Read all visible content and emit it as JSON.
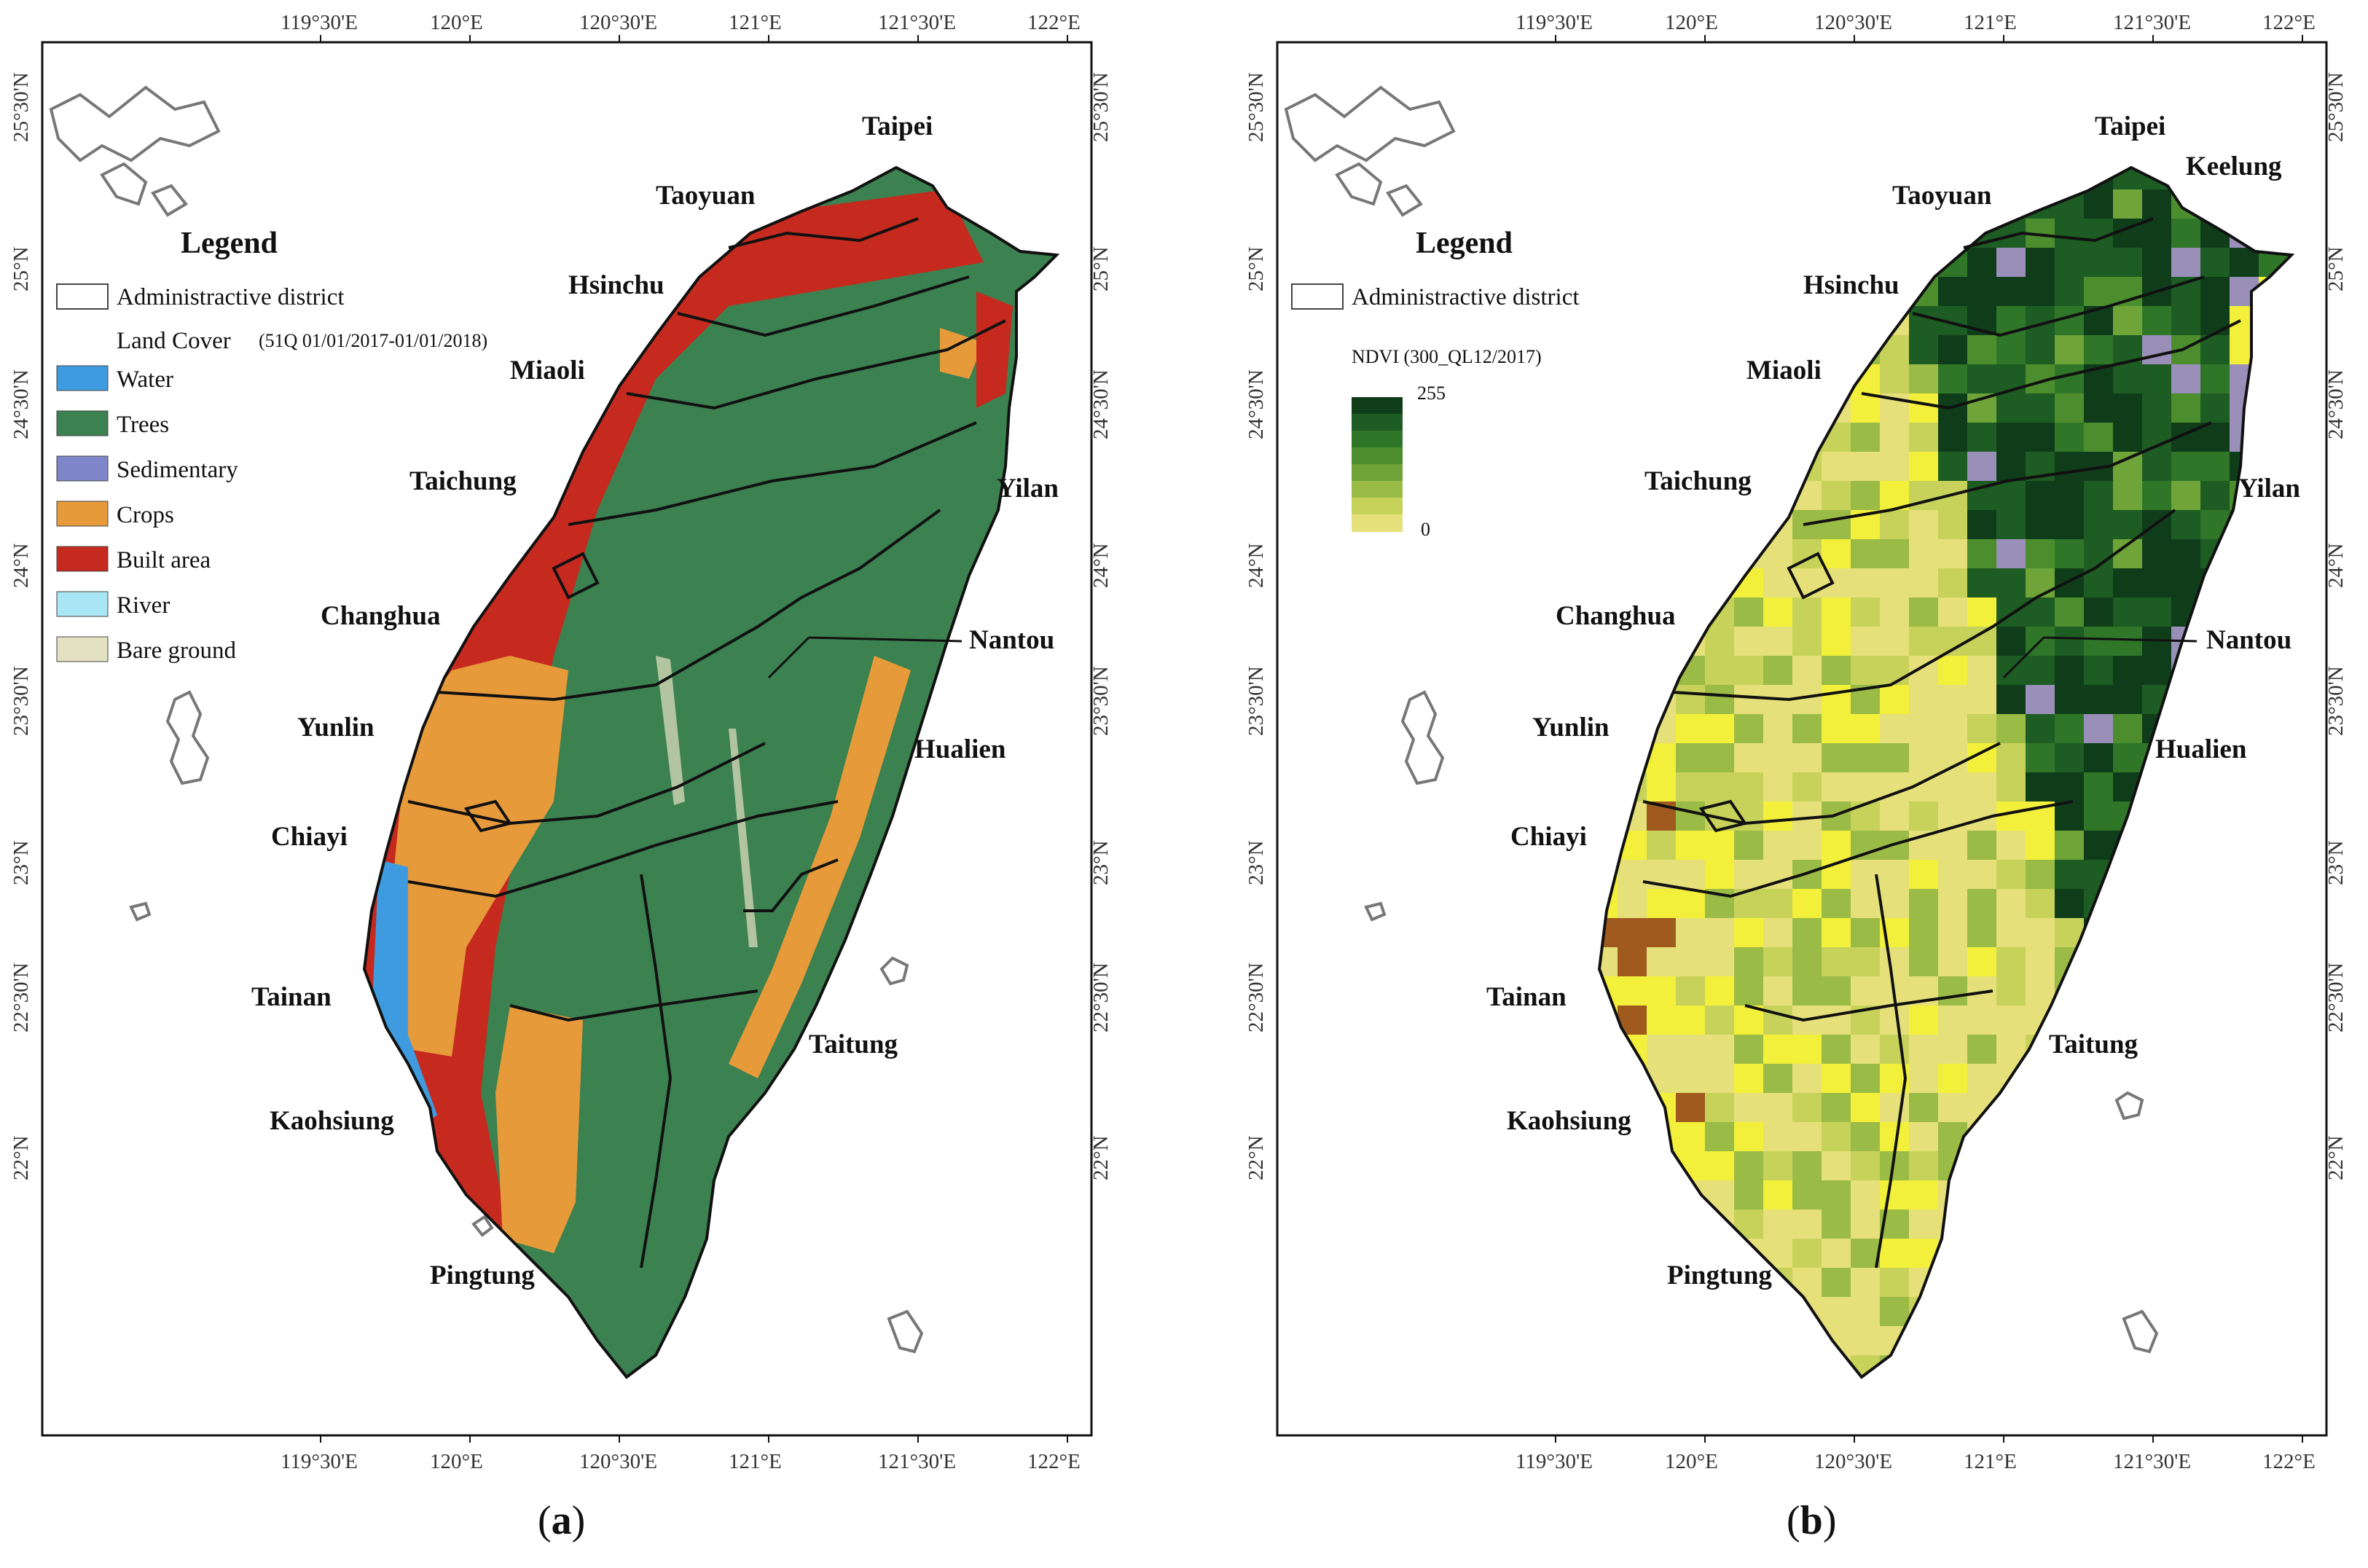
{
  "panels": [
    {
      "caption_open": "(",
      "caption_letter": "a",
      "caption_close": ")",
      "legend": {
        "title": "Legend",
        "admin_label": "Administractive district",
        "landcover_title": "Land Cover",
        "landcover_note": "(51Q 01/01/2017-01/01/2018)",
        "classes": [
          {
            "label": "Water",
            "color": "#3f9be0"
          },
          {
            "label": "Trees",
            "color": "#3c8150"
          },
          {
            "label": "Sedimentary",
            "color": "#7f86c9"
          },
          {
            "label": "Crops",
            "color": "#e79a3a"
          },
          {
            "label": "Built area",
            "color": "#c62a1f"
          },
          {
            "label": "River",
            "color": "#a8e6f5"
          },
          {
            "label": "Bare ground",
            "color": "#e4e1c2"
          }
        ]
      },
      "cities": [
        "Taipei",
        "Taoyuan",
        "Hsinchu",
        "Miaoli",
        "Taichung",
        "Yilan",
        "Changhua",
        "Nantou",
        "Yunlin",
        "Hualien",
        "Chiayi",
        "Tainan",
        "Taitung",
        "Kaohsiung",
        "Pingtung"
      ]
    },
    {
      "caption_open": "(",
      "caption_letter": "b",
      "caption_close": ")",
      "legend": {
        "title": "Legend",
        "admin_label": "Administractive district",
        "ndvi_title": "NDVI (300_QL12/2017)",
        "ndvi_max": "255",
        "ndvi_min": "0",
        "ramp": [
          "#0f3d1a",
          "#1d5c22",
          "#2f7628",
          "#4c8e2e",
          "#6ea438",
          "#9abb46",
          "#c7d25a",
          "#e6e07a"
        ]
      },
      "cities": [
        "Taipei",
        "Keelung",
        "Taoyuan",
        "Hsinchu",
        "Miaoli",
        "Taichung",
        "Yilan",
        "Changhua",
        "Nantou",
        "Yunlin",
        "Hualien",
        "Chiayi",
        "Tainan",
        "Taitung",
        "Kaohsiung",
        "Pingtung"
      ]
    }
  ],
  "x_ticks": [
    "119°30'E",
    "120°E",
    "120°30'E",
    "121°E",
    "121°30'E",
    "122°E"
  ],
  "y_ticks": [
    "25°30'N",
    "25°N",
    "24°30'N",
    "24°N",
    "23°30'N",
    "23°N",
    "22°30'N",
    "22°N"
  ],
  "colors": {
    "island": "#3c8150",
    "ndvi_base": "#1d5c22",
    "frame": "#111111",
    "coast_outline": "#777777"
  }
}
